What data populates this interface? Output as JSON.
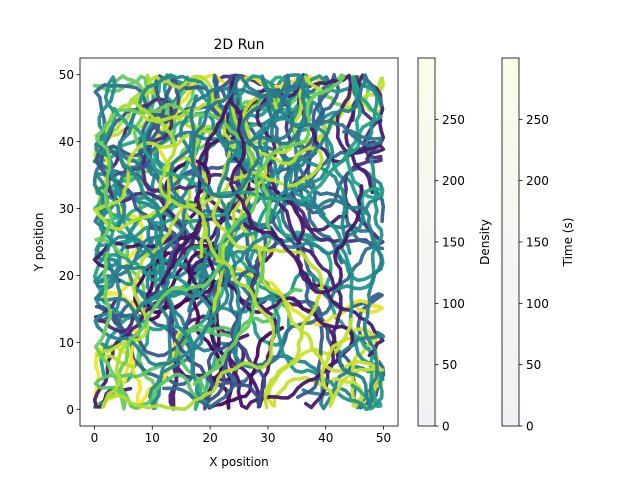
{
  "chart_data": {
    "type": "line",
    "title": "2D Run",
    "xlabel": "X position",
    "ylabel": "Y position",
    "xlim": [
      -2.5,
      52.5
    ],
    "ylim": [
      -2.5,
      52.5
    ],
    "xticks": [
      "0",
      "10",
      "20",
      "30",
      "40",
      "50"
    ],
    "yticks": [
      "0",
      "10",
      "20",
      "30",
      "40",
      "50"
    ],
    "domain": [
      0,
      50
    ],
    "description": "",
    "grid": false,
    "color_scale": "viridis",
    "line_count": 60,
    "colorbars": [
      {
        "label": "Density",
        "range": [
          0,
          300
        ],
        "ticks": [
          "0",
          "50",
          "100",
          "150",
          "200",
          "250"
        ],
        "colormap": "near-white (very light green/yellow tint)"
      },
      {
        "label": "Time (s)",
        "range": [
          0,
          300
        ],
        "ticks": [
          "0",
          "50",
          "100",
          "150",
          "200",
          "250"
        ],
        "colormap": "near-white (very light green/yellow tint)"
      }
    ]
  }
}
